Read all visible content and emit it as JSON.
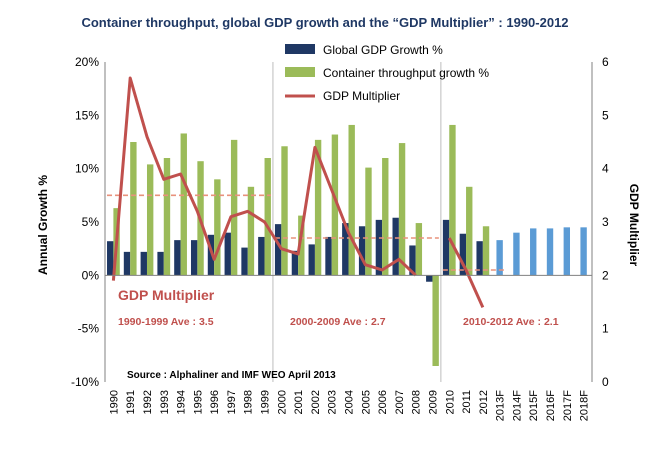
{
  "chart_data": {
    "type": "bar",
    "title": "Container throughput,  global GDP growth  and the “GDP Multiplier” : 1990-2012",
    "categories": [
      "1990",
      "1991",
      "1992",
      "1993",
      "1994",
      "1995",
      "1996",
      "1997",
      "1998",
      "1999",
      "2000",
      "2001",
      "2002",
      "2003",
      "2004",
      "2005",
      "2006",
      "2007",
      "2008",
      "2009",
      "2010",
      "2011",
      "2012",
      "2013F",
      "2014F",
      "2015F",
      "2016F",
      "2017F",
      "2018F"
    ],
    "series": [
      {
        "name": "Global GDP Growth %",
        "kind": "bar",
        "axis": "left",
        "color": "#1f3864",
        "forecast_color": "#5b9bd5",
        "values": [
          3.2,
          2.2,
          2.2,
          2.2,
          3.3,
          3.3,
          3.8,
          4.0,
          2.6,
          3.6,
          4.8,
          2.3,
          2.9,
          3.6,
          4.9,
          4.6,
          5.2,
          5.4,
          2.8,
          -0.6,
          5.2,
          3.9,
          3.2,
          3.3,
          4.0,
          4.4,
          4.4,
          4.5,
          4.5
        ]
      },
      {
        "name": "Container throughput growth %",
        "kind": "bar",
        "axis": "left",
        "color": "#9bbb59",
        "values": [
          6.3,
          12.5,
          10.4,
          11.0,
          13.3,
          10.7,
          9.0,
          12.7,
          8.3,
          11.0,
          12.1,
          5.6,
          12.7,
          13.2,
          14.1,
          10.1,
          11.0,
          12.4,
          4.9,
          -8.5,
          14.1,
          8.3,
          4.6,
          null,
          null,
          null,
          null,
          null,
          null
        ]
      },
      {
        "name": "GDP Multiplier",
        "kind": "line",
        "axis": "right",
        "color": "#c0504d",
        "values": [
          1.9,
          5.7,
          4.6,
          3.8,
          3.9,
          3.2,
          2.3,
          3.1,
          3.2,
          3.0,
          2.5,
          2.4,
          4.4,
          3.6,
          2.8,
          2.2,
          2.1,
          2.3,
          2.0,
          null,
          2.7,
          2.1,
          1.4,
          null,
          null,
          null,
          null,
          null,
          null
        ]
      }
    ],
    "ylim": [
      -10,
      20
    ],
    "y_ticks": [
      "20%",
      "15%",
      "10%",
      "5%",
      "0%",
      "-5%",
      "-10%"
    ],
    "y2lim": [
      0,
      6
    ],
    "y2_ticks": [
      "6",
      "5",
      "4",
      "3",
      "2",
      "1",
      "0"
    ],
    "ylabel": "Annual Growth %",
    "y2label": "GDP Multiplier",
    "legend_position": "top-center",
    "period_averages": [
      {
        "label": "1990-1999 Ave : 3.5",
        "value": 3.5,
        "from": "1990",
        "to": "1999"
      },
      {
        "label": "2000-2009 Ave : 2.7",
        "value": 2.7,
        "from": "2000",
        "to": "2009"
      },
      {
        "label": "2010-2012 Ave : 2.1",
        "value": 2.1,
        "from": "2010",
        "to": "2013F"
      }
    ],
    "period_dividers": [
      "1999",
      "2009"
    ],
    "annotation": "GDP Multiplier",
    "source": "Source : Alphaliner and IMF WEO April 2013"
  }
}
